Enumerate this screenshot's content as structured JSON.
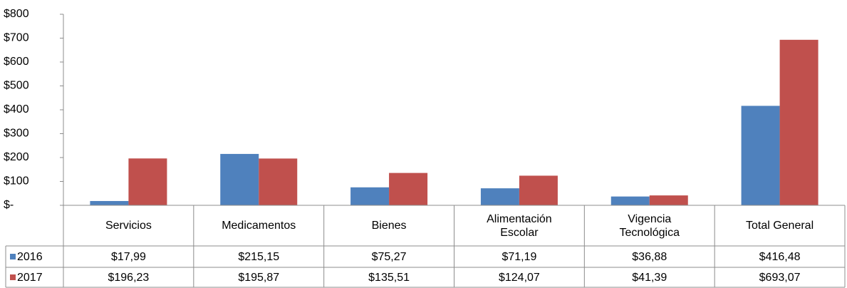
{
  "chart_data": {
    "type": "bar",
    "categories": [
      "Servicios",
      "Medicamentos",
      "Bienes",
      "Alimentación Escolar",
      "Vigencia Tecnológica",
      "Total General"
    ],
    "series": [
      {
        "name": "2016",
        "color": "#4f81bd",
        "values": [
          17.99,
          215.15,
          75.27,
          71.19,
          36.88,
          416.48
        ],
        "value_labels": [
          "$17,99",
          "$215,15",
          "$75,27",
          "$71,19",
          "$36,88",
          "$416,48"
        ]
      },
      {
        "name": "2017",
        "color": "#c0504d",
        "values": [
          196.23,
          195.87,
          135.51,
          124.07,
          41.39,
          693.07
        ],
        "value_labels": [
          "$196,23",
          "$195,87",
          "$135,51",
          "$124,07",
          "$41,39",
          "$693,07"
        ]
      }
    ],
    "ylim": [
      0,
      800
    ],
    "yticks": [
      {
        "value": 0,
        "label": "$-"
      },
      {
        "value": 100,
        "label": "$100"
      },
      {
        "value": 200,
        "label": "$200"
      },
      {
        "value": 300,
        "label": "$300"
      },
      {
        "value": 400,
        "label": "$400"
      },
      {
        "value": 500,
        "label": "$500"
      },
      {
        "value": 600,
        "label": "$600"
      },
      {
        "value": 700,
        "label": "$700"
      },
      {
        "value": 800,
        "label": "$800"
      }
    ]
  }
}
